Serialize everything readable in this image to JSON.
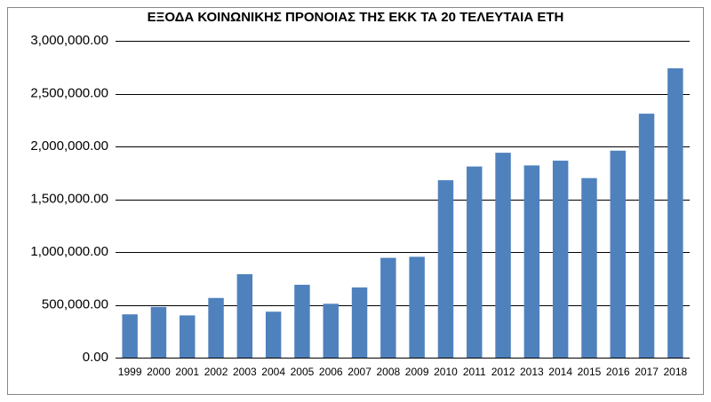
{
  "chart_data": {
    "type": "bar",
    "title": "ΕΞΟΔΑ ΚΟΙΝΩΝΙΚΗΣ ΠΡΟΝΟΙΑΣ ΤΗΣ ΕΚΚ ΤΑ 20 ΤΕΛΕΥΤΑΙΑ ΕΤΗ",
    "categories": [
      "1999",
      "2000",
      "2001",
      "2002",
      "2003",
      "2004",
      "2005",
      "2006",
      "2007",
      "2008",
      "2009",
      "2010",
      "2011",
      "2012",
      "2013",
      "2014",
      "2015",
      "2016",
      "2017",
      "2018"
    ],
    "values": [
      410000,
      480000,
      400000,
      565000,
      790000,
      435000,
      690000,
      510000,
      665000,
      945000,
      955000,
      1680000,
      1810000,
      1940000,
      1820000,
      1865000,
      1700000,
      1960000,
      2310000,
      2740000
    ],
    "color": "#4f81bd",
    "ylim": [
      0,
      3000000
    ],
    "yticks": [
      {
        "value": 0,
        "label": "0.00"
      },
      {
        "value": 500000,
        "label": "500,000.00"
      },
      {
        "value": 1000000,
        "label": "1,000,000.00"
      },
      {
        "value": 1500000,
        "label": "1,500,000.00"
      },
      {
        "value": 2000000,
        "label": "2,000,000.00"
      },
      {
        "value": 2500000,
        "label": "2,500,000.00"
      },
      {
        "value": 3000000,
        "label": "3,000,000.00"
      }
    ],
    "grid": true
  }
}
